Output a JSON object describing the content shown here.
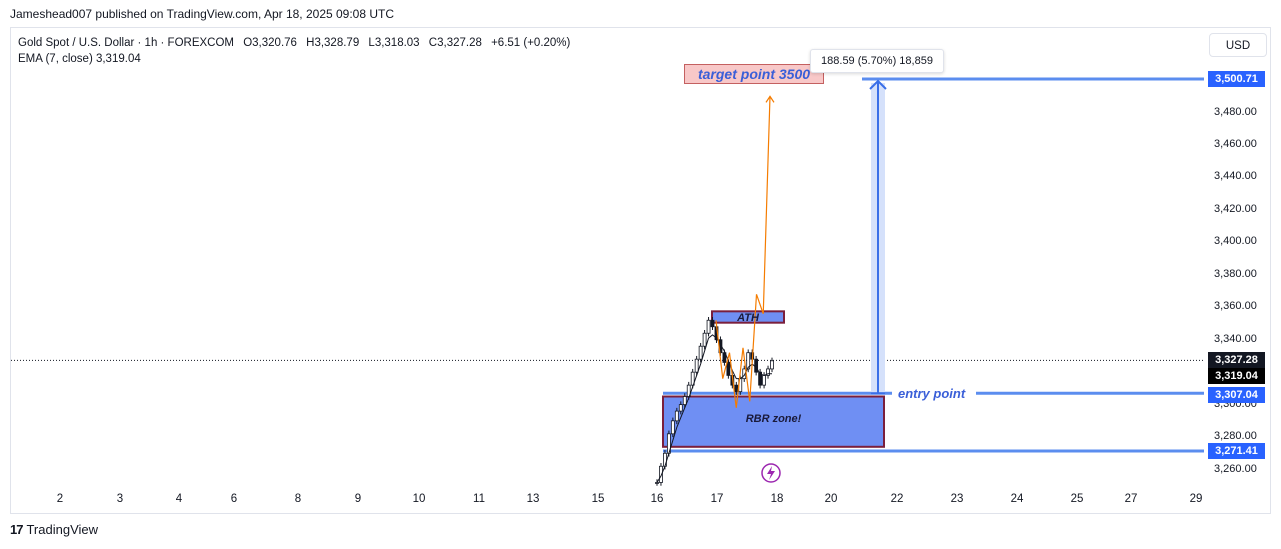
{
  "header": {
    "published_by": "Jameshead007 published on TradingView.com, Apr 18, 2025 09:08 UTC"
  },
  "legend": {
    "symbol": "Gold Spot / U.S. Dollar · 1h · FOREXCOM",
    "open": "O3,320.76",
    "high": "H3,328.79",
    "low": "L3,318.03",
    "close": "C3,327.28",
    "change": "+6.51 (+0.20%)",
    "ema": "EMA (7, close)  3,319.04"
  },
  "currency_button": "USD",
  "annotations": {
    "target": "target point 3500",
    "measure": "188.59 (5.70%) 18,859",
    "entry": "entry point",
    "ath": "ATH",
    "rbr": "RBR zone!"
  },
  "chart_data": {
    "type": "line",
    "title": "",
    "xlabel": "",
    "ylabel": "",
    "x_ticks": [
      "2",
      "3",
      "4",
      "6",
      "8",
      "9",
      "10",
      "11",
      "13",
      "15",
      "16",
      "17",
      "18",
      "20",
      "22",
      "23",
      "24",
      "25",
      "27",
      "29"
    ],
    "y_ticks": [
      "3,480.00",
      "3,460.00",
      "3,440.00",
      "3,420.00",
      "3,400.00",
      "3,380.00",
      "3,360.00",
      "3,340.00",
      "3,300.00",
      "3,280.00",
      "3,260.00"
    ],
    "ylim": [
      3250,
      3510
    ],
    "price_tags": [
      {
        "label": "3,500.71",
        "color": "#2962ff"
      },
      {
        "label": "3,327.28",
        "color": "#131722"
      },
      {
        "label": "3,319.04",
        "color": "#000000"
      },
      {
        "label": "3,307.04",
        "color": "#2962ff"
      },
      {
        "label": "3,271.41",
        "color": "#2962ff"
      }
    ],
    "levels": {
      "target": 3500.71,
      "last_price": 3327.28,
      "ema": 3319.04,
      "entry": 3307.04,
      "zone_bottom": 3271.41
    },
    "zones": [
      {
        "name": "ATH",
        "top": 3357.5,
        "bottom": 3350.5
      },
      {
        "name": "RBR zone!",
        "top": 3305,
        "bottom": 3274
      }
    ],
    "series": [
      {
        "values": [
          3252,
          3262,
          3270,
          3282,
          3290,
          3296,
          3300,
          3305,
          3312,
          3320,
          3328,
          3336,
          3344,
          3352,
          3348,
          3340,
          3332,
          3326,
          3318,
          3312,
          3308,
          3316,
          3322,
          3332,
          3328,
          3320,
          3312,
          3318,
          3322,
          3327
        ]
      },
      {
        "name": "EMA (7, close)",
        "values": [
          3252,
          3256,
          3262,
          3270,
          3278,
          3286,
          3292,
          3298,
          3304,
          3311,
          3318,
          3325,
          3333,
          3341,
          3343,
          3341,
          3337,
          3333,
          3327,
          3321,
          3316,
          3316,
          3318,
          3323,
          3325,
          3323,
          3319,
          3318,
          3319,
          3319
        ]
      }
    ],
    "projection": [
      {
        "x": 0,
        "y": 3352
      },
      {
        "x": 1,
        "y": 3316
      },
      {
        "x": 2,
        "y": 3332
      },
      {
        "x": 3,
        "y": 3298
      },
      {
        "x": 4,
        "y": 3335
      },
      {
        "x": 5,
        "y": 3302
      },
      {
        "x": 6,
        "y": 3368
      },
      {
        "x": 7,
        "y": 3356
      },
      {
        "x": 8,
        "y": 3490
      }
    ]
  }
}
